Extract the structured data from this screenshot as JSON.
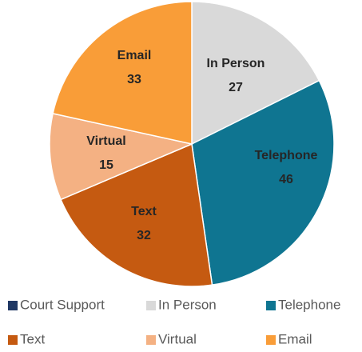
{
  "chart_data": {
    "type": "pie",
    "categories": [
      "Court Support",
      "In Person",
      "Telephone",
      "Text",
      "Virtual",
      "Email"
    ],
    "values": [
      0,
      27,
      46,
      32,
      15,
      33
    ],
    "colors": [
      "#1f3864",
      "#d9d9d9",
      "#0f7591",
      "#c55a11",
      "#f4b183",
      "#f99d38"
    ]
  }
}
